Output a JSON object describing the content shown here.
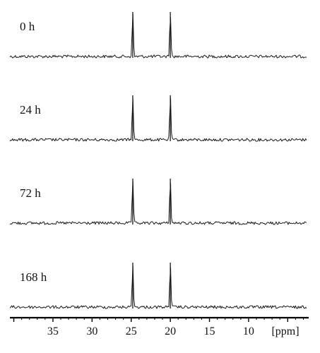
{
  "chart_data": {
    "type": "line",
    "xlabel": "[ppm]",
    "x_reversed": true,
    "xlim": [
      40.5,
      2.5
    ],
    "x_ticks": [
      "35",
      "30",
      "25",
      "20",
      "15",
      "10"
    ],
    "grid": false,
    "legend": "none",
    "line_color": "#1a1a1a",
    "series": [
      {
        "name": "0 h",
        "peaks": [
          {
            "x": 24.8,
            "height": 1.0
          },
          {
            "x": 20.0,
            "height": 1.0
          }
        ]
      },
      {
        "name": "24 h",
        "peaks": [
          {
            "x": 24.8,
            "height": 1.0
          },
          {
            "x": 20.0,
            "height": 1.0
          }
        ]
      },
      {
        "name": "72 h",
        "peaks": [
          {
            "x": 24.8,
            "height": 1.0
          },
          {
            "x": 20.0,
            "height": 1.0
          }
        ]
      },
      {
        "name": "168 h",
        "peaks": [
          {
            "x": 24.8,
            "height": 1.0
          },
          {
            "x": 20.0,
            "height": 1.0
          }
        ]
      }
    ]
  }
}
